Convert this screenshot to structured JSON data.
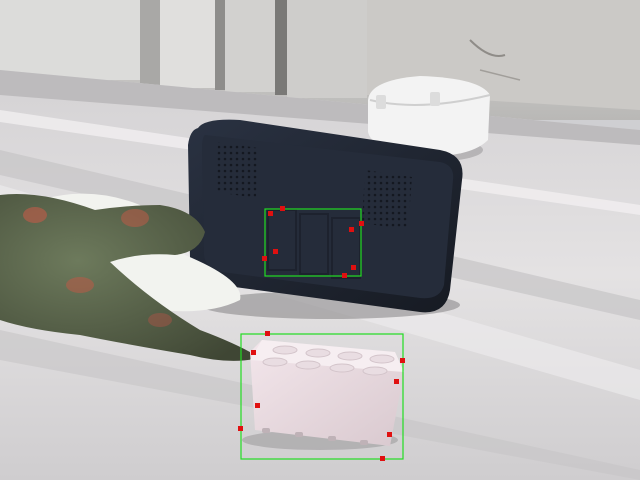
{
  "scene": {
    "description_objects": [
      "wall-panels",
      "white-shelf",
      "white-timer",
      "black-digital-clock",
      "dinosaur-toy",
      "white-puddle",
      "pink-brick"
    ],
    "colors": {
      "wall": "#c4c3c1",
      "shelf": "#e6e4e5",
      "clock_body": "#1f2430",
      "clock_face": "#262d3c",
      "timer": "#f1f1f1",
      "dino": "#616c52",
      "dino_spot": "#b45c48",
      "puddle": "#f2f3ef",
      "brick": "#ecdde2",
      "bbox_stroke": "#22dd22",
      "keypoint": "#e01010"
    }
  },
  "annotations": {
    "boxes": [
      {
        "label": "",
        "target": "clock-display"
      },
      {
        "label": "",
        "target": "pink-brick"
      }
    ]
  }
}
